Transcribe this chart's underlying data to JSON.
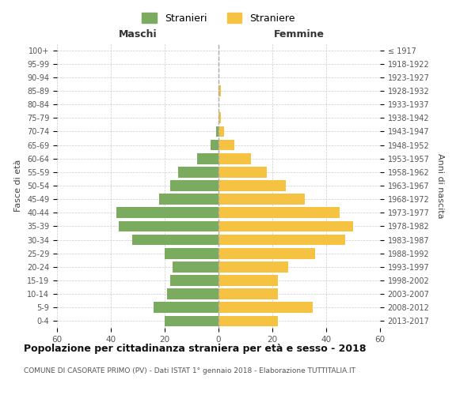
{
  "age_groups": [
    "0-4",
    "5-9",
    "10-14",
    "15-19",
    "20-24",
    "25-29",
    "30-34",
    "35-39",
    "40-44",
    "45-49",
    "50-54",
    "55-59",
    "60-64",
    "65-69",
    "70-74",
    "75-79",
    "80-84",
    "85-89",
    "90-94",
    "95-99",
    "100+"
  ],
  "birth_years": [
    "2013-2017",
    "2008-2012",
    "2003-2007",
    "1998-2002",
    "1993-1997",
    "1988-1992",
    "1983-1987",
    "1978-1982",
    "1973-1977",
    "1968-1972",
    "1963-1967",
    "1958-1962",
    "1953-1957",
    "1948-1952",
    "1943-1947",
    "1938-1942",
    "1933-1937",
    "1928-1932",
    "1923-1927",
    "1918-1922",
    "≤ 1917"
  ],
  "males": [
    20,
    24,
    19,
    18,
    17,
    20,
    32,
    37,
    38,
    22,
    18,
    15,
    8,
    3,
    1,
    0,
    0,
    0,
    0,
    0,
    0
  ],
  "females": [
    22,
    35,
    22,
    22,
    26,
    36,
    47,
    50,
    45,
    32,
    25,
    18,
    12,
    6,
    2,
    1,
    0,
    1,
    0,
    0,
    0
  ],
  "male_color": "#7aab5e",
  "female_color": "#f5c242",
  "background_color": "#ffffff",
  "grid_color": "#cccccc",
  "title": "Popolazione per cittadinanza straniera per età e sesso - 2018",
  "subtitle": "COMUNE DI CASORATE PRIMO (PV) - Dati ISTAT 1° gennaio 2018 - Elaborazione TUTTITALIA.IT",
  "xlabel_left": "Maschi",
  "xlabel_right": "Femmine",
  "ylabel_left": "Fasce di età",
  "ylabel_right": "Anni di nascita",
  "legend_male": "Stranieri",
  "legend_female": "Straniere",
  "xlim": 60,
  "bar_height": 0.8
}
